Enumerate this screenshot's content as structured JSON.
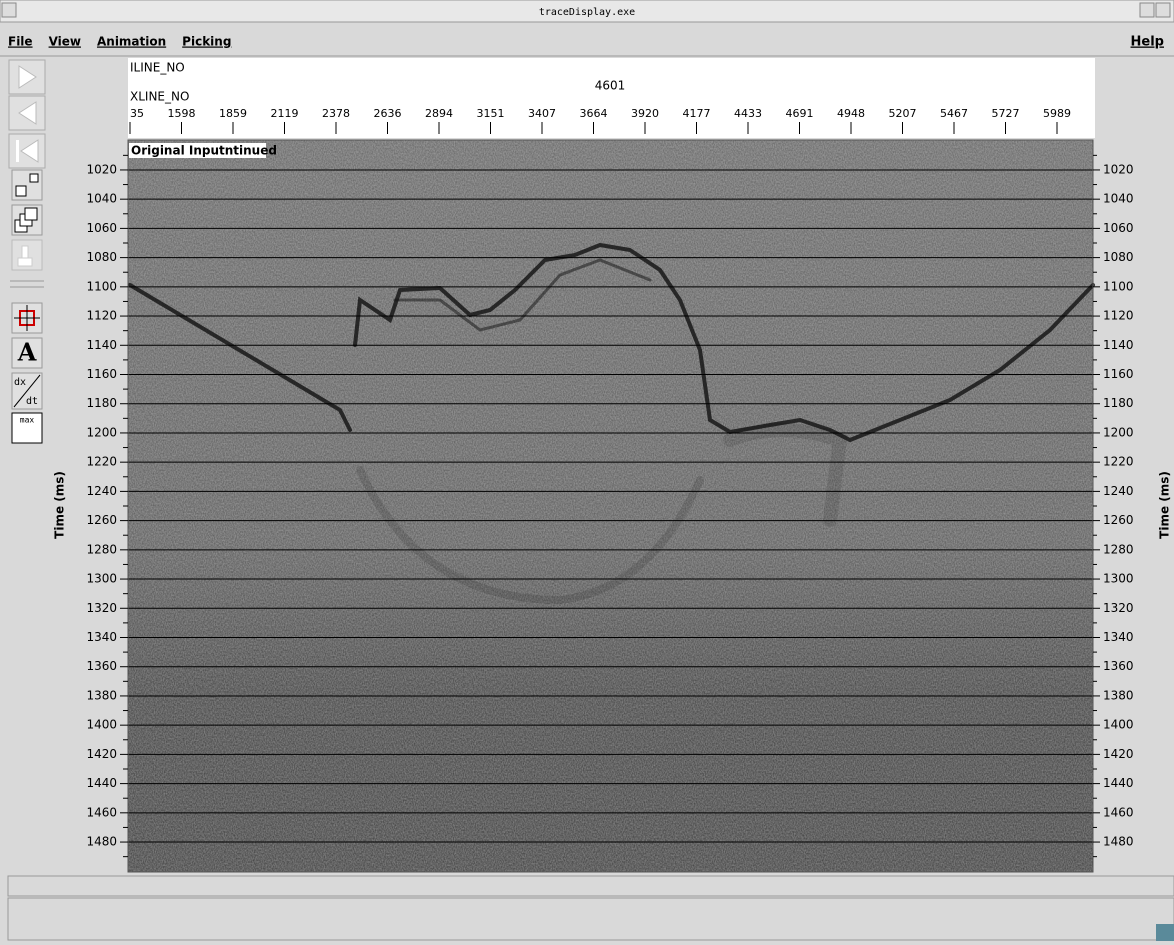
{
  "window": {
    "title": "traceDisplay.exe"
  },
  "menu": {
    "items": [
      "File",
      "View",
      "Animation",
      "Picking"
    ],
    "help": "Help"
  },
  "toolbar": {
    "text_icon": "A",
    "derivative_top": "dx",
    "derivative_bottom": "dt",
    "max_icon": "max"
  },
  "header": {
    "iline_label": "ILINE_NO",
    "iline_value": "4601",
    "xline_label": "XLINE_NO"
  },
  "display": {
    "panel_label": "Original Inputntinued",
    "y_label": "Time (ms)",
    "xticks": [
      35,
      1598,
      1859,
      2119,
      2378,
      2636,
      2894,
      3151,
      3407,
      3664,
      3920,
      4177,
      4433,
      4691,
      4948,
      5207,
      5467,
      5727,
      5989
    ],
    "ylim": [
      999.5,
      1500.5
    ],
    "yticks": [
      1020,
      1040,
      1060,
      1080,
      1100,
      1120,
      1140,
      1160,
      1180,
      1200,
      1220,
      1240,
      1260,
      1280,
      1300,
      1320,
      1340,
      1360,
      1380,
      1400,
      1420,
      1440,
      1460,
      1480
    ],
    "grid": true
  }
}
